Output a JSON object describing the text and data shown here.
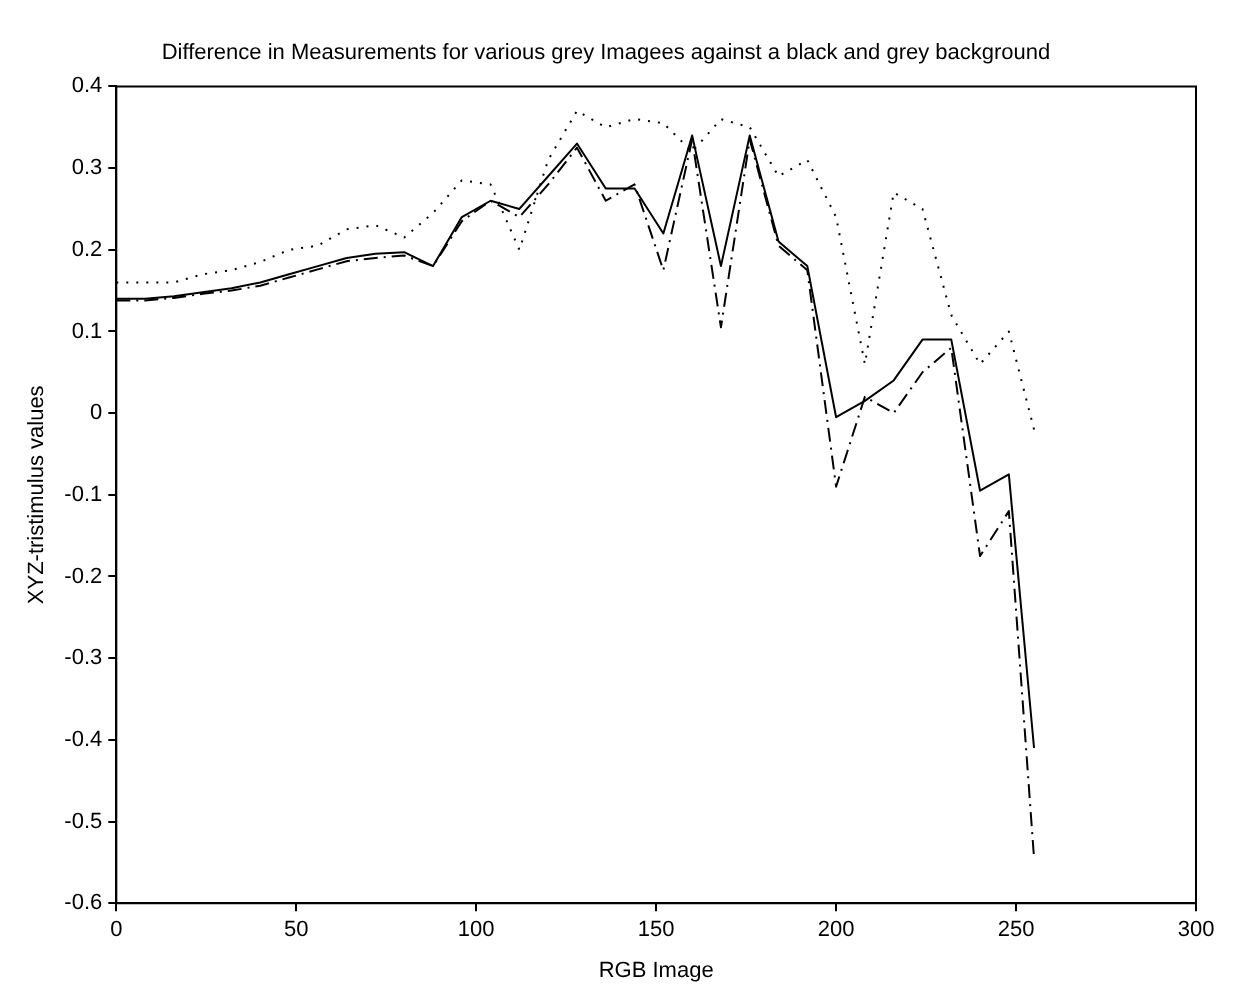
{
  "chart_data": {
    "type": "line",
    "title": "Difference in Measurements for various grey Imagees against a black and grey background",
    "xlabel": "RGB Image",
    "ylabel": "XYZ-tristimulus values",
    "x": [
      0,
      8,
      16,
      24,
      32,
      40,
      48,
      56,
      64,
      72,
      80,
      88,
      96,
      104,
      112,
      120,
      128,
      136,
      144,
      152,
      160,
      168,
      176,
      184,
      192,
      200,
      208,
      216,
      224,
      232,
      240,
      248,
      255
    ],
    "series": [
      {
        "color": "#000000",
        "line_style": "solid",
        "values": [
          0.14,
          0.14,
          0.143,
          0.148,
          0.153,
          0.16,
          0.17,
          0.18,
          0.19,
          0.195,
          0.197,
          0.18,
          0.24,
          0.26,
          0.25,
          0.29,
          0.33,
          0.275,
          0.275,
          0.22,
          0.34,
          0.18,
          0.34,
          0.21,
          0.18,
          -0.005,
          0.015,
          0.04,
          0.09,
          0.09,
          -0.095,
          -0.075,
          -0.41
        ]
      },
      {
        "color": "#000000",
        "line_style": "dashed",
        "values": [
          0.138,
          0.138,
          0.141,
          0.146,
          0.15,
          0.156,
          0.166,
          0.176,
          0.186,
          0.19,
          0.193,
          0.18,
          0.235,
          0.26,
          0.24,
          0.28,
          0.325,
          0.26,
          0.28,
          0.175,
          0.335,
          0.105,
          0.335,
          0.205,
          0.175,
          -0.09,
          0.02,
          0.0,
          0.05,
          0.08,
          -0.175,
          -0.12,
          -0.545
        ]
      },
      {
        "color": "#000000",
        "line_style": "dotted",
        "values": [
          0.16,
          0.16,
          0.16,
          0.17,
          0.175,
          0.185,
          0.2,
          0.205,
          0.225,
          0.23,
          0.215,
          0.245,
          0.285,
          0.28,
          0.2,
          0.31,
          0.37,
          0.35,
          0.36,
          0.355,
          0.32,
          0.36,
          0.35,
          0.29,
          0.31,
          0.24,
          0.06,
          0.27,
          0.25,
          0.12,
          0.06,
          0.1,
          -0.02
        ]
      }
    ],
    "xlim": [
      0,
      300
    ],
    "xticks": [
      0,
      50,
      100,
      150,
      200,
      250,
      300
    ],
    "ylim": [
      -0.6,
      0.4
    ],
    "yticks": [
      -0.6,
      -0.5,
      -0.4,
      -0.3,
      -0.2,
      -0.1,
      0,
      0.1,
      0.2,
      0.3,
      0.4
    ],
    "grid": false,
    "legend": false,
    "marker": "none"
  }
}
